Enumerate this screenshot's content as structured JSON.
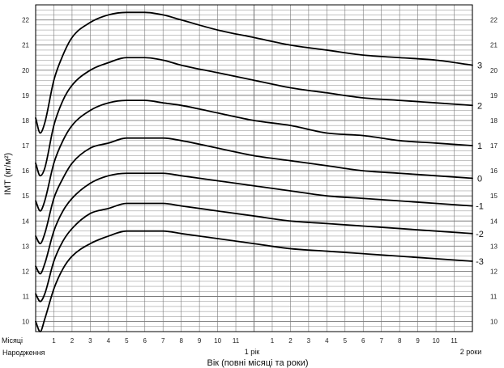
{
  "chart_data": {
    "type": "line",
    "title": "",
    "xlabel": "Вік (повні місяці та роки)",
    "ylabel": "ІМТ (кг/м²)",
    "xlim": [
      0,
      24
    ],
    "ylim": [
      9.6,
      22.6
    ],
    "y_ticks": [
      10,
      11,
      12,
      13,
      14,
      15,
      16,
      17,
      18,
      19,
      20,
      21,
      22
    ],
    "x_month_ticks": [
      "1",
      "2",
      "3",
      "4",
      "5",
      "6",
      "7",
      "8",
      "9",
      "10",
      "11",
      "1",
      "2",
      "3",
      "4",
      "5",
      "6",
      "7",
      "8",
      "9",
      "10",
      "11"
    ],
    "months_label": "Місяці",
    "birth_label": "Народження",
    "year1_label": "1 рік",
    "year2_label": "2 роки",
    "grid": true,
    "legend": "none",
    "series": [
      {
        "name": "3",
        "x": [
          0,
          0.25,
          0.5,
          1,
          1.5,
          2,
          3,
          4,
          5,
          6,
          7,
          8,
          10,
          12,
          14,
          16,
          18,
          20,
          22,
          24
        ],
        "y": [
          18.1,
          17.5,
          17.9,
          19.6,
          20.6,
          21.3,
          21.9,
          22.2,
          22.3,
          22.3,
          22.2,
          22.0,
          21.6,
          21.3,
          21.0,
          20.8,
          20.6,
          20.5,
          20.4,
          20.2
        ]
      },
      {
        "name": "2",
        "x": [
          0,
          0.25,
          0.5,
          1,
          1.5,
          2,
          3,
          4,
          5,
          6,
          7,
          8,
          10,
          12,
          14,
          16,
          18,
          20,
          22,
          24
        ],
        "y": [
          16.3,
          15.8,
          16.1,
          17.8,
          18.8,
          19.4,
          20.0,
          20.3,
          20.5,
          20.5,
          20.4,
          20.2,
          19.9,
          19.6,
          19.3,
          19.1,
          18.9,
          18.8,
          18.7,
          18.6
        ]
      },
      {
        "name": "1",
        "x": [
          0,
          0.25,
          0.5,
          1,
          1.5,
          2,
          3,
          4,
          5,
          6,
          7,
          8,
          10,
          12,
          14,
          16,
          18,
          20,
          22,
          24
        ],
        "y": [
          14.8,
          14.4,
          14.8,
          16.3,
          17.2,
          17.8,
          18.4,
          18.7,
          18.8,
          18.8,
          18.7,
          18.6,
          18.3,
          18.0,
          17.8,
          17.5,
          17.4,
          17.2,
          17.1,
          17.0
        ]
      },
      {
        "name": "0",
        "x": [
          0,
          0.25,
          0.5,
          1,
          1.5,
          2,
          3,
          4,
          5,
          6,
          7,
          8,
          10,
          12,
          14,
          16,
          18,
          20,
          22,
          24
        ],
        "y": [
          13.4,
          13.1,
          13.5,
          14.9,
          15.7,
          16.3,
          16.9,
          17.1,
          17.3,
          17.3,
          17.3,
          17.2,
          16.9,
          16.6,
          16.4,
          16.2,
          16.0,
          15.9,
          15.8,
          15.7
        ]
      },
      {
        "name": "-1",
        "x": [
          0,
          0.25,
          0.5,
          1,
          1.5,
          2,
          3,
          4,
          5,
          6,
          7,
          8,
          10,
          12,
          14,
          16,
          18,
          20,
          22,
          24
        ],
        "y": [
          12.2,
          11.9,
          12.3,
          13.6,
          14.4,
          14.9,
          15.5,
          15.8,
          15.9,
          15.9,
          15.9,
          15.8,
          15.6,
          15.4,
          15.2,
          15.0,
          14.9,
          14.8,
          14.7,
          14.6
        ]
      },
      {
        "name": "-2",
        "x": [
          0,
          0.25,
          0.5,
          1,
          1.5,
          2,
          3,
          4,
          5,
          6,
          7,
          8,
          10,
          12,
          14,
          16,
          18,
          20,
          22,
          24
        ],
        "y": [
          11.1,
          10.8,
          11.1,
          12.4,
          13.2,
          13.7,
          14.3,
          14.5,
          14.7,
          14.7,
          14.7,
          14.6,
          14.4,
          14.2,
          14.0,
          13.9,
          13.8,
          13.7,
          13.6,
          13.5
        ]
      },
      {
        "name": "-3",
        "x": [
          0,
          0.25,
          0.5,
          1,
          1.5,
          2,
          3,
          4,
          5,
          6,
          7,
          8,
          10,
          12,
          14,
          16,
          18,
          20,
          22,
          24
        ],
        "y": [
          10.0,
          9.6,
          10.1,
          11.3,
          12.1,
          12.6,
          13.1,
          13.4,
          13.6,
          13.6,
          13.6,
          13.5,
          13.3,
          13.1,
          12.9,
          12.8,
          12.7,
          12.6,
          12.5,
          12.4
        ]
      }
    ],
    "colors": {
      "curve": "#000000",
      "grid": "#7a7a7a",
      "frame": "#000000",
      "text": "#111111"
    }
  }
}
